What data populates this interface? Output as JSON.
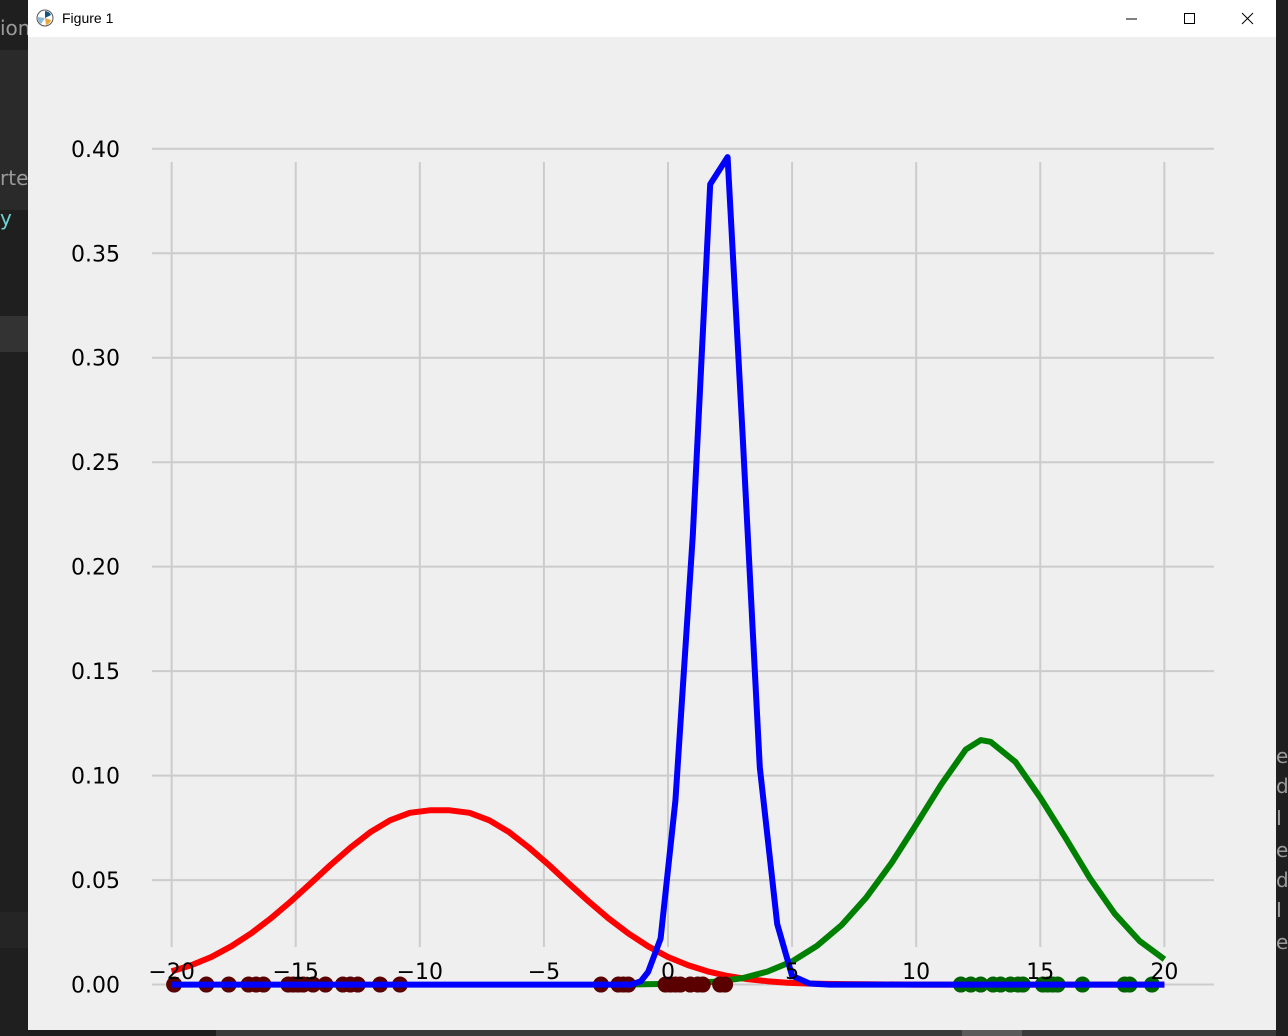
{
  "window": {
    "title": "Figure 1"
  },
  "background": {
    "left_texts": [
      "ion",
      "rte",
      "y"
    ],
    "right_texts": [
      "e",
      "d",
      "I",
      "e",
      "d",
      "I",
      "e"
    ]
  },
  "chart_data": {
    "type": "line",
    "title": "",
    "xlabel": "",
    "ylabel": "",
    "xlim": [
      -22,
      22
    ],
    "ylim": [
      -0.005,
      0.42
    ],
    "xticks": [
      -20,
      -15,
      -10,
      -5,
      0,
      5,
      10,
      15,
      20
    ],
    "xtick_labels": [
      "−20",
      "−15",
      "−10",
      "−5",
      "0",
      "5",
      "10",
      "15",
      "20"
    ],
    "yticks": [
      0.0,
      0.05,
      0.1,
      0.15,
      0.2,
      0.25,
      0.3,
      0.35,
      0.4
    ],
    "ytick_labels": [
      "0.00",
      "0.05",
      "0.10",
      "0.15",
      "0.20",
      "0.25",
      "0.30",
      "0.35",
      "0.40"
    ],
    "grid": true,
    "series": [
      {
        "color": "#ff0000",
        "x": [
          -20,
          -19.2,
          -18.4,
          -17.6,
          -16.8,
          -16,
          -15.2,
          -14.4,
          -13.6,
          -12.8,
          -12,
          -11.2,
          -10.4,
          -9.6,
          -8.8,
          -8,
          -7.2,
          -6.4,
          -5.6,
          -4.8,
          -4,
          -3.2,
          -2.4,
          -1.6,
          -0.8,
          0,
          0.8,
          1.6,
          2.4,
          3.2,
          4,
          4.8,
          5.6,
          6.4,
          7.2,
          8,
          10,
          12,
          14,
          16,
          18,
          20
        ],
        "y": [
          0.0063,
          0.0093,
          0.0132,
          0.0183,
          0.0245,
          0.0317,
          0.0398,
          0.0484,
          0.0572,
          0.0655,
          0.0729,
          0.0786,
          0.0822,
          0.0834,
          0.0834,
          0.0822,
          0.0786,
          0.0729,
          0.0655,
          0.0572,
          0.0484,
          0.0398,
          0.0317,
          0.0245,
          0.0183,
          0.0132,
          0.0093,
          0.0063,
          0.0041,
          0.0026,
          0.0016,
          0.0009,
          0.0005,
          0.0003,
          0.0002,
          0.0001,
          0.0,
          0.0,
          0.0,
          0.0,
          0.0,
          0.0
        ]
      },
      {
        "color": "#008000",
        "x": [
          -2,
          0,
          2,
          3,
          4,
          5,
          6,
          7,
          8,
          9,
          10,
          11,
          12,
          12.6,
          13,
          14,
          15,
          16,
          17,
          18,
          19,
          20
        ],
        "y": [
          0.0,
          0.0003,
          0.0014,
          0.0031,
          0.0062,
          0.0111,
          0.0185,
          0.0285,
          0.0418,
          0.0581,
          0.0766,
          0.0956,
          0.1125,
          0.117,
          0.1162,
          0.1065,
          0.0895,
          0.0705,
          0.0509,
          0.0339,
          0.0209,
          0.0121
        ]
      },
      {
        "color": "#0000ff",
        "x": [
          -20,
          -1.5,
          -1.1,
          -0.8,
          -0.3,
          0.3,
          1,
          1.7,
          2.4,
          3,
          3.7,
          4.4,
          5,
          5.7,
          6.5,
          8,
          20
        ],
        "y": [
          0.0,
          0.0,
          0.0015,
          0.006,
          0.022,
          0.088,
          0.215,
          0.383,
          0.396,
          0.264,
          0.104,
          0.029,
          0.0042,
          0.0005,
          0.0,
          0.0,
          0.0
        ]
      }
    ],
    "scatter": [
      {
        "color": "#5a0000",
        "x": [
          -19.9,
          -18.6,
          -17.7,
          -16.9,
          -16.6,
          -16.3,
          -15.3,
          -15.1,
          -14.9,
          -14.7,
          -14.3,
          -13.8,
          -13.1,
          -12.8,
          -12.5,
          -11.6,
          -10.8,
          -2.7,
          -2.0,
          -1.8,
          -1.6,
          -0.1,
          0.1,
          0.3,
          0.5,
          0.9,
          1.2,
          1.4,
          2.1,
          2.3
        ]
      },
      {
        "color": "#006400",
        "x": [
          11.8,
          12.2,
          12.6,
          13.1,
          13.4,
          13.8,
          14.1,
          14.3,
          15.1,
          15.3,
          15.5,
          15.7,
          16.7,
          18.4,
          18.6,
          19.5
        ]
      }
    ]
  }
}
